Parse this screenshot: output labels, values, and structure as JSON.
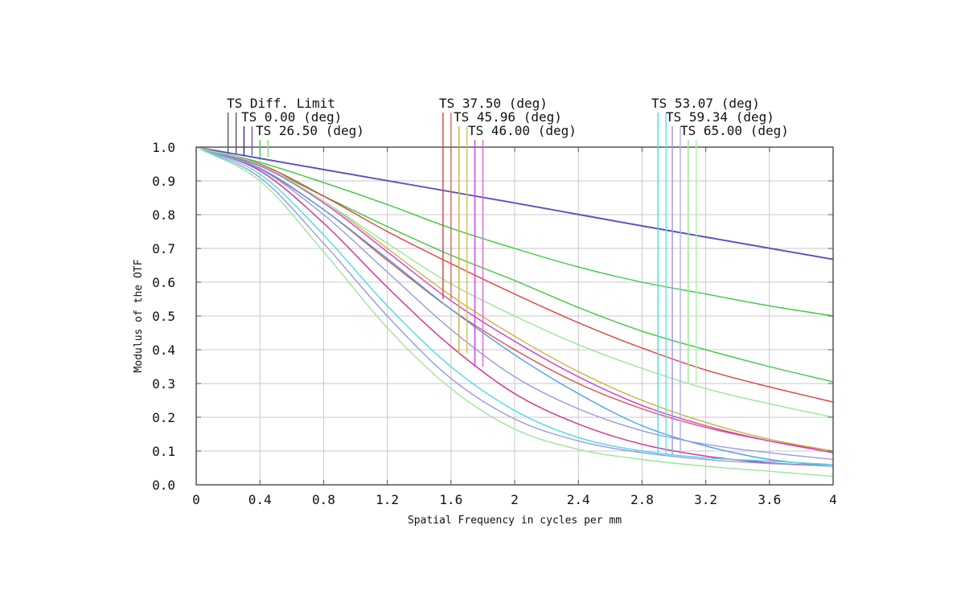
{
  "chart_data": {
    "type": "line",
    "title": "",
    "xlabel": "Spatial Frequency in cycles per mm",
    "ylabel": "Modulus of the OTF",
    "xlim": [
      0,
      4
    ],
    "ylim": [
      0,
      1
    ],
    "x_ticks": [
      0,
      0.4,
      0.8,
      1.2,
      1.6,
      2,
      2.4,
      2.8,
      3.2,
      3.6,
      4
    ],
    "x_tick_labels": [
      "0",
      "0.4",
      "0.8",
      "1.2",
      "1.6",
      "2",
      "2.4",
      "2.8",
      "3.2",
      "3.6",
      "4"
    ],
    "y_ticks": [
      0,
      0.1,
      0.2,
      0.3,
      0.4,
      0.5,
      0.6,
      0.7,
      0.8,
      0.9,
      1.0
    ],
    "y_tick_labels": [
      "0.0",
      "0.1",
      "0.2",
      "0.3",
      "0.4",
      "0.5",
      "0.6",
      "0.7",
      "0.8",
      "0.9",
      "1.0"
    ],
    "grid": true,
    "legend": [
      {
        "label": "TS Diff. Limit",
        "tangential_color": "#555555",
        "sagittal_color": "#555555",
        "marker_x": 0.2,
        "marker_bottom": 0.98
      },
      {
        "label": "TS 0.00 (deg)",
        "tangential_color": "#2b2b9a",
        "sagittal_color": "#5a5acc",
        "marker_x": 0.3,
        "marker_bottom": 0.975
      },
      {
        "label": "TS 26.50 (deg)",
        "tangential_color": "#3cc83c",
        "sagittal_color": "#7ee07e",
        "marker_x": 0.4,
        "marker_bottom": 0.97
      },
      {
        "label": "TS 37.50 (deg)",
        "tangential_color": "#e03c3c",
        "sagittal_color": "#e86060",
        "marker_x": 1.55,
        "marker_bottom": 0.55
      },
      {
        "label": "TS 45.96 (deg)",
        "tangential_color": "#c8b43c",
        "sagittal_color": "#d4c050",
        "marker_x": 1.65,
        "marker_bottom": 0.39
      },
      {
        "label": "TS 46.00 (deg)",
        "tangential_color": "#d23cd2",
        "sagittal_color": "#e060e0",
        "marker_x": 1.75,
        "marker_bottom": 0.35
      },
      {
        "label": "TS 53.07 (deg)",
        "tangential_color": "#4ad8e8",
        "sagittal_color": "#60e0ee",
        "marker_x": 2.9,
        "marker_bottom": 0.09
      },
      {
        "label": "TS 59.34 (deg)",
        "tangential_color": "#9a9ae0",
        "sagittal_color": "#b0b0ea",
        "marker_x": 2.99,
        "marker_bottom": 0.09
      },
      {
        "label": "TS 65.00 (deg)",
        "tangential_color": "#9ae69a",
        "sagittal_color": "#b0ecb0",
        "marker_x": 3.09,
        "marker_bottom": 0.3
      }
    ],
    "x": [
      0,
      0.4,
      0.8,
      1.2,
      1.6,
      2.0,
      2.4,
      2.8,
      3.2,
      3.6,
      4.0
    ],
    "series": [
      {
        "name": "TS Diff. Limit",
        "color": "#555555",
        "values": [
          1.0,
          0.967,
          0.934,
          0.901,
          0.868,
          0.835,
          0.801,
          0.767,
          0.734,
          0.701,
          0.668
        ]
      },
      {
        "name": "TS 0.00 (deg) T",
        "color": "#2b2b9a",
        "values": [
          1.0,
          0.967,
          0.934,
          0.901,
          0.868,
          0.835,
          0.801,
          0.767,
          0.734,
          0.701,
          0.668
        ]
      },
      {
        "name": "TS 0.00 (deg) S",
        "color": "#5a5acc",
        "values": [
          1.0,
          0.966,
          0.933,
          0.9,
          0.867,
          0.834,
          0.8,
          0.766,
          0.733,
          0.7,
          0.667
        ]
      },
      {
        "name": "TS 26.50 (deg) T",
        "color": "#3cc83c",
        "values": [
          1.0,
          0.955,
          0.895,
          0.83,
          0.76,
          0.7,
          0.645,
          0.6,
          0.565,
          0.53,
          0.5
        ]
      },
      {
        "name": "TS 26.50 (deg) S",
        "color": "#3cc83c",
        "values": [
          1.0,
          0.945,
          0.855,
          0.765,
          0.68,
          0.605,
          0.525,
          0.455,
          0.4,
          0.35,
          0.305
        ]
      },
      {
        "name": "TS 37.50 (deg) T",
        "color": "#e03c3c",
        "values": [
          1.0,
          0.95,
          0.855,
          0.75,
          0.655,
          0.565,
          0.48,
          0.405,
          0.34,
          0.29,
          0.245
        ]
      },
      {
        "name": "TS 37.50 (deg) S",
        "color": "#e05050",
        "values": [
          1.0,
          0.935,
          0.815,
          0.665,
          0.52,
          0.4,
          0.3,
          0.225,
          0.17,
          0.13,
          0.1
        ]
      },
      {
        "name": "TS 45.96 (deg) T",
        "color": "#c8b43c",
        "values": [
          1.0,
          0.945,
          0.84,
          0.7,
          0.56,
          0.44,
          0.335,
          0.25,
          0.185,
          0.135,
          0.1
        ]
      },
      {
        "name": "TS 46.00 (deg) T",
        "color": "#d23cd2",
        "values": [
          1.0,
          0.945,
          0.835,
          0.69,
          0.545,
          0.425,
          0.32,
          0.235,
          0.175,
          0.13,
          0.095
        ]
      },
      {
        "name": "TS 46.00 (deg) S",
        "color": "#d22d8c",
        "values": [
          1.0,
          0.93,
          0.775,
          0.585,
          0.41,
          0.27,
          0.18,
          0.12,
          0.085,
          0.065,
          0.055
        ]
      },
      {
        "name": "TS 53.07 (deg) T",
        "color": "#4aa0e8",
        "values": [
          1.0,
          0.938,
          0.815,
          0.67,
          0.52,
          0.385,
          0.27,
          0.175,
          0.115,
          0.075,
          0.055
        ]
      },
      {
        "name": "TS 53.07 (deg) S",
        "color": "#4ad8e8",
        "values": [
          1.0,
          0.92,
          0.74,
          0.53,
          0.35,
          0.22,
          0.14,
          0.1,
          0.08,
          0.07,
          0.06
        ]
      },
      {
        "name": "TS 59.34 (deg) T",
        "color": "#9a9ae0",
        "values": [
          1.0,
          0.935,
          0.8,
          0.63,
          0.46,
          0.32,
          0.225,
          0.16,
          0.12,
          0.095,
          0.075
        ]
      },
      {
        "name": "TS 59.34 (deg) S",
        "color": "#9a9ae0",
        "values": [
          1.0,
          0.91,
          0.715,
          0.5,
          0.315,
          0.195,
          0.13,
          0.095,
          0.075,
          0.063,
          0.055
        ]
      },
      {
        "name": "TS 65.00 (deg) T",
        "color": "#9ae69a",
        "values": [
          1.0,
          0.948,
          0.84,
          0.715,
          0.595,
          0.5,
          0.415,
          0.345,
          0.285,
          0.24,
          0.2
        ]
      },
      {
        "name": "TS 65.00 (deg) S",
        "color": "#9ae69a",
        "values": [
          1.0,
          0.9,
          0.69,
          0.465,
          0.285,
          0.165,
          0.105,
          0.075,
          0.055,
          0.04,
          0.025
        ]
      }
    ]
  }
}
